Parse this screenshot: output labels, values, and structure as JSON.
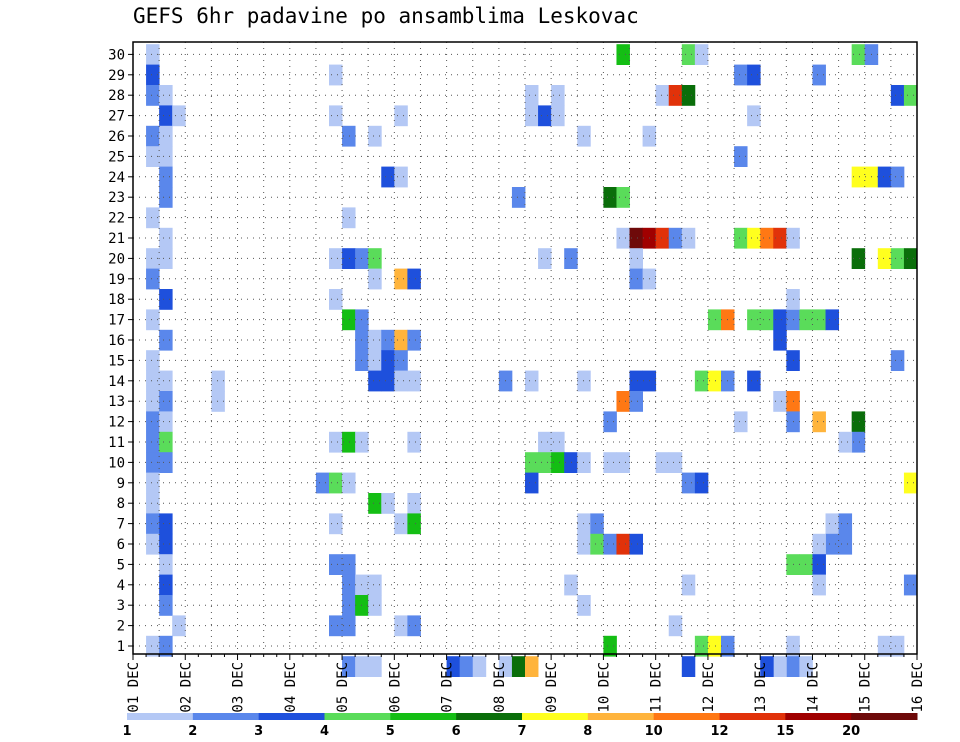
{
  "chart_data": {
    "type": "heatmap",
    "title": "GEFS 6hr padavine po ansamblima Leskovac",
    "xlabel": "",
    "ylabel": "",
    "x_tick_labels": [
      "01 DEC",
      "02 DEC",
      "03 DEC",
      "04 DEC",
      "05 DEC",
      "06 DEC",
      "07 DEC",
      "08 DEC",
      "09 DEC",
      "10 DEC",
      "11 DEC",
      "12 DEC",
      "13 DEC",
      "14 DEC",
      "15 DEC",
      "16 DEC"
    ],
    "y_tick_labels": [
      "1",
      "2",
      "3",
      "4",
      "5",
      "6",
      "7",
      "8",
      "9",
      "10",
      "11",
      "12",
      "13",
      "14",
      "15",
      "16",
      "17",
      "18",
      "19",
      "20",
      "21",
      "22",
      "23",
      "24",
      "25",
      "26",
      "27",
      "28",
      "29",
      "30"
    ],
    "x_range_steps": [
      0,
      60
    ],
    "y_range_members": [
      0,
      30
    ],
    "legend": {
      "levels": [
        "1",
        "2",
        "3",
        "4",
        "5",
        "6",
        "7",
        "8",
        "10",
        "12",
        "15",
        "20"
      ],
      "colors": [
        "#b4c8f5",
        "#5a87eb",
        "#1e50dc",
        "#5adc5a",
        "#14be14",
        "#0a6e0a",
        "#ffff1e",
        "#ffb43c",
        "#ff7814",
        "#e1320a",
        "#a00000",
        "#6e0a0a"
      ]
    },
    "cells": [
      [
        1,
        30,
        1
      ],
      [
        1,
        29,
        3
      ],
      [
        1,
        28,
        2
      ],
      [
        2,
        28,
        1
      ],
      [
        2,
        27,
        3
      ],
      [
        3,
        27,
        1
      ],
      [
        1,
        26,
        2
      ],
      [
        2,
        26,
        1
      ],
      [
        1,
        25,
        1
      ],
      [
        2,
        25,
        1
      ],
      [
        2,
        24,
        2
      ],
      [
        2,
        23,
        2
      ],
      [
        1,
        22,
        1
      ],
      [
        2,
        21,
        1
      ],
      [
        1,
        20,
        1
      ],
      [
        2,
        20,
        1
      ],
      [
        1,
        19,
        2
      ],
      [
        2,
        18,
        3
      ],
      [
        1,
        17,
        1
      ],
      [
        2,
        16,
        2
      ],
      [
        1,
        15,
        1
      ],
      [
        1,
        14,
        1
      ],
      [
        2,
        14,
        1
      ],
      [
        1,
        13,
        1
      ],
      [
        2,
        13,
        2
      ],
      [
        1,
        12,
        2
      ],
      [
        2,
        12,
        1
      ],
      [
        1,
        11,
        2
      ],
      [
        2,
        11,
        4
      ],
      [
        1,
        10,
        2
      ],
      [
        2,
        10,
        2
      ],
      [
        1,
        9,
        1
      ],
      [
        1,
        8,
        1
      ],
      [
        1,
        7,
        2
      ],
      [
        2,
        7,
        3
      ],
      [
        1,
        6,
        1
      ],
      [
        2,
        6,
        3
      ],
      [
        2,
        5,
        1
      ],
      [
        2,
        4,
        3
      ],
      [
        2,
        3,
        2
      ],
      [
        3,
        2,
        1
      ],
      [
        1,
        1,
        1
      ],
      [
        2,
        1,
        2
      ],
      [
        6,
        13,
        1
      ],
      [
        6,
        14,
        1
      ],
      [
        15,
        29,
        1
      ],
      [
        15,
        27,
        1
      ],
      [
        16,
        26,
        2
      ],
      [
        18,
        26,
        1
      ],
      [
        16,
        22,
        1
      ],
      [
        15,
        20,
        1
      ],
      [
        16,
        20,
        3
      ],
      [
        17,
        20,
        2
      ],
      [
        18,
        20,
        4
      ],
      [
        18,
        19,
        1
      ],
      [
        15,
        18,
        1
      ],
      [
        16,
        17,
        5
      ],
      [
        17,
        17,
        2
      ],
      [
        17,
        16,
        2
      ],
      [
        18,
        16,
        1
      ],
      [
        17,
        15,
        2
      ],
      [
        18,
        15,
        1
      ],
      [
        18,
        14,
        3
      ],
      [
        19,
        14,
        3
      ],
      [
        15,
        11,
        1
      ],
      [
        16,
        11,
        5
      ],
      [
        17,
        11,
        1
      ],
      [
        14,
        9,
        2
      ],
      [
        15,
        9,
        4
      ],
      [
        16,
        9,
        1
      ],
      [
        18,
        8,
        5
      ],
      [
        19,
        8,
        1
      ],
      [
        15,
        7,
        1
      ],
      [
        15,
        5,
        2
      ],
      [
        16,
        5,
        2
      ],
      [
        16,
        4,
        2
      ],
      [
        17,
        4,
        1
      ],
      [
        18,
        4,
        1
      ],
      [
        16,
        3,
        2
      ],
      [
        17,
        3,
        5
      ],
      [
        18,
        3,
        1
      ],
      [
        15,
        2,
        2
      ],
      [
        16,
        2,
        2
      ],
      [
        16,
        0,
        2
      ],
      [
        17,
        0,
        1
      ],
      [
        18,
        0,
        1
      ],
      [
        20,
        27,
        1
      ],
      [
        19,
        24,
        3
      ],
      [
        20,
        24,
        1
      ],
      [
        20,
        19,
        8
      ],
      [
        21,
        19,
        3
      ],
      [
        19,
        16,
        2
      ],
      [
        20,
        16,
        8
      ],
      [
        21,
        16,
        2
      ],
      [
        19,
        15,
        3
      ],
      [
        20,
        15,
        2
      ],
      [
        20,
        14,
        1
      ],
      [
        21,
        14,
        1
      ],
      [
        21,
        11,
        1
      ],
      [
        21,
        8,
        1
      ],
      [
        20,
        7,
        1
      ],
      [
        21,
        7,
        5
      ],
      [
        20,
        2,
        1
      ],
      [
        21,
        2,
        2
      ],
      [
        24,
        0,
        3
      ],
      [
        25,
        0,
        2
      ],
      [
        26,
        0,
        1
      ],
      [
        28,
        0,
        1
      ],
      [
        29,
        0,
        6
      ],
      [
        30,
        0,
        8
      ],
      [
        30,
        28,
        1
      ],
      [
        30,
        27,
        1
      ],
      [
        31,
        27,
        3
      ],
      [
        32,
        27,
        1
      ],
      [
        29,
        23,
        2
      ],
      [
        31,
        20,
        1
      ],
      [
        33,
        20,
        2
      ],
      [
        28,
        14,
        2
      ],
      [
        30,
        14,
        1
      ],
      [
        34,
        14,
        1
      ],
      [
        31,
        11,
        1
      ],
      [
        32,
        11,
        1
      ],
      [
        30,
        10,
        4
      ],
      [
        31,
        10,
        4
      ],
      [
        32,
        10,
        5
      ],
      [
        33,
        10,
        3
      ],
      [
        34,
        10,
        1
      ],
      [
        30,
        9,
        3
      ],
      [
        33,
        4,
        1
      ],
      [
        34,
        3,
        1
      ],
      [
        32,
        28,
        1
      ],
      [
        34,
        26,
        1
      ],
      [
        34,
        7,
        1
      ],
      [
        35,
        7,
        2
      ],
      [
        34,
        6,
        1
      ],
      [
        35,
        6,
        4
      ],
      [
        37,
        30,
        5
      ],
      [
        36,
        23,
        6
      ],
      [
        37,
        23,
        4
      ],
      [
        37,
        21,
        1
      ],
      [
        38,
        21,
        12
      ],
      [
        39,
        21,
        11
      ],
      [
        40,
        21,
        10
      ],
      [
        41,
        21,
        2
      ],
      [
        42,
        21,
        1
      ],
      [
        38,
        20,
        1
      ],
      [
        38,
        19,
        2
      ],
      [
        39,
        19,
        1
      ],
      [
        38,
        14,
        3
      ],
      [
        39,
        14,
        3
      ],
      [
        37,
        13,
        9
      ],
      [
        38,
        13,
        2
      ],
      [
        36,
        12,
        2
      ],
      [
        36,
        10,
        1
      ],
      [
        37,
        10,
        1
      ],
      [
        40,
        10,
        1
      ],
      [
        41,
        10,
        1
      ],
      [
        36,
        6,
        2
      ],
      [
        37,
        6,
        10
      ],
      [
        38,
        6,
        3
      ],
      [
        36,
        1,
        5
      ],
      [
        39,
        26,
        1
      ],
      [
        40,
        28,
        1
      ],
      [
        41,
        28,
        10
      ],
      [
        42,
        28,
        6
      ],
      [
        42,
        30,
        4
      ],
      [
        43,
        30,
        1
      ],
      [
        42,
        9,
        2
      ],
      [
        43,
        9,
        3
      ],
      [
        42,
        4,
        1
      ],
      [
        41,
        2,
        1
      ],
      [
        42,
        0,
        3
      ],
      [
        43,
        1,
        4
      ],
      [
        44,
        1,
        7
      ],
      [
        45,
        1,
        2
      ],
      [
        43,
        14,
        4
      ],
      [
        44,
        14,
        7
      ],
      [
        45,
        14,
        2
      ],
      [
        44,
        17,
        4
      ],
      [
        45,
        17,
        9
      ],
      [
        46,
        29,
        2
      ],
      [
        47,
        29,
        3
      ],
      [
        47,
        27,
        1
      ],
      [
        46,
        25,
        2
      ],
      [
        46,
        21,
        4
      ],
      [
        47,
        21,
        7
      ],
      [
        48,
        21,
        9
      ],
      [
        49,
        21,
        10
      ],
      [
        50,
        21,
        1
      ],
      [
        47,
        17,
        4
      ],
      [
        48,
        17,
        4
      ],
      [
        49,
        17,
        3
      ],
      [
        50,
        17,
        2
      ],
      [
        51,
        17,
        4
      ],
      [
        52,
        17,
        4
      ],
      [
        53,
        17,
        3
      ],
      [
        49,
        16,
        3
      ],
      [
        50,
        15,
        3
      ],
      [
        47,
        14,
        3
      ],
      [
        49,
        13,
        1
      ],
      [
        50,
        13,
        9
      ],
      [
        46,
        12,
        1
      ],
      [
        50,
        12,
        2
      ],
      [
        50,
        18,
        1
      ],
      [
        52,
        29,
        2
      ],
      [
        52,
        12,
        8
      ],
      [
        53,
        7,
        1
      ],
      [
        54,
        7,
        2
      ],
      [
        53,
        6,
        2
      ],
      [
        54,
        6,
        2
      ],
      [
        52,
        6,
        1
      ],
      [
        50,
        5,
        4
      ],
      [
        51,
        5,
        4
      ],
      [
        52,
        5,
        3
      ],
      [
        52,
        4,
        1
      ],
      [
        50,
        1,
        1
      ],
      [
        50,
        0,
        2
      ],
      [
        49,
        0,
        1
      ],
      [
        51,
        0,
        1
      ],
      [
        48,
        0,
        3
      ],
      [
        55,
        30,
        4
      ],
      [
        56,
        30,
        2
      ],
      [
        55,
        24,
        7
      ],
      [
        56,
        24,
        7
      ],
      [
        57,
        24,
        3
      ],
      [
        58,
        24,
        2
      ],
      [
        55,
        20,
        6
      ],
      [
        57,
        20,
        7
      ],
      [
        58,
        20,
        4
      ],
      [
        59,
        20,
        6
      ],
      [
        55,
        12,
        6
      ],
      [
        55,
        11,
        2
      ],
      [
        54,
        11,
        1
      ],
      [
        58,
        28,
        3
      ],
      [
        59,
        28,
        4
      ],
      [
        58,
        15,
        2
      ],
      [
        59,
        9,
        7
      ],
      [
        59,
        4,
        2
      ],
      [
        57,
        1,
        1
      ],
      [
        58,
        1,
        1
      ]
    ]
  }
}
